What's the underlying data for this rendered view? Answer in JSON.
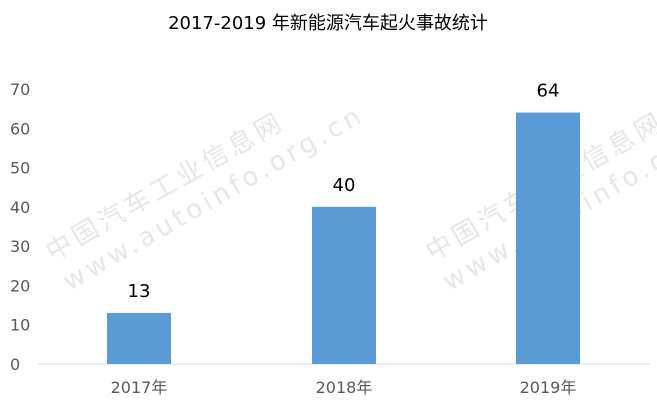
{
  "chart_data": {
    "type": "bar",
    "title": "2017-2019 年新能源汽车起火事故统计",
    "categories": [
      "2017年",
      "2018年",
      "2019年"
    ],
    "values": [
      13,
      40,
      64
    ],
    "data_labels": [
      "13",
      "40",
      "64"
    ],
    "xlabel": "",
    "ylabel": "",
    "ylim": [
      0,
      70
    ],
    "yticks": [
      "0",
      "10",
      "20",
      "30",
      "40",
      "50",
      "60",
      "70"
    ],
    "grid": false,
    "legend": "none",
    "bar_color": "#5b9bd5"
  },
  "watermark": {
    "line1": "中国汽车工业信息网",
    "line2": "www.autoinfo.org.cn"
  }
}
